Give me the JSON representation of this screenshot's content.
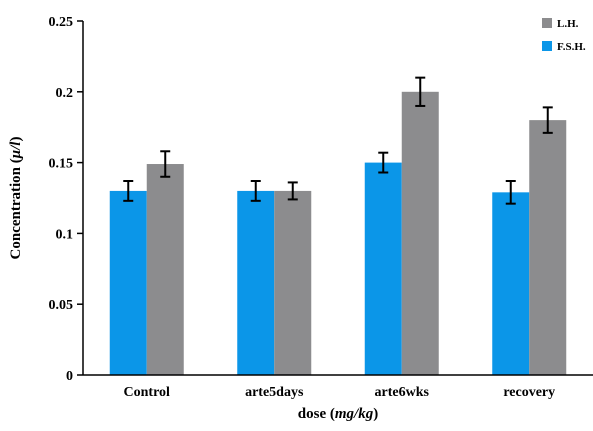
{
  "chart_data": {
    "type": "bar",
    "categories": [
      "Control",
      "arte5days",
      "arte6wks",
      "recovery"
    ],
    "series": [
      {
        "name": "F.S.H.",
        "color": "#0b96e8",
        "values": [
          0.13,
          0.13,
          0.15,
          0.129
        ],
        "errors": [
          0.007,
          0.007,
          0.007,
          0.008
        ]
      },
      {
        "name": "L.H.",
        "color": "#8c8c8e",
        "values": [
          0.149,
          0.13,
          0.2,
          0.18
        ],
        "errors": [
          0.009,
          0.006,
          0.01,
          0.009
        ]
      }
    ],
    "ylim": [
      0,
      0.25
    ],
    "yticks": [
      "0",
      "0.05",
      "0.1",
      "0.15",
      "0.2",
      "0.25"
    ],
    "ylabel": {
      "prefix": "Concentration (",
      "unit": "μ/l",
      "suffix": ")"
    },
    "xlabel": {
      "prefix": "dose (",
      "unit": "mg/kg",
      "suffix": ")"
    },
    "legend_position": "top-right",
    "grid": false
  }
}
